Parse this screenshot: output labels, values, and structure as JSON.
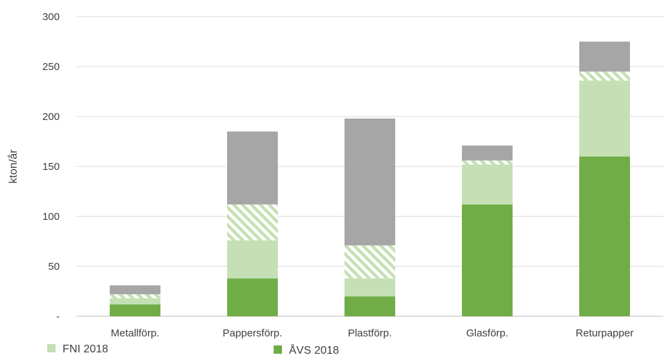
{
  "chart_data": {
    "type": "bar",
    "stacked": true,
    "ylabel": "kton/år",
    "ylim": [
      0,
      300
    ],
    "yticks": [
      0,
      50,
      100,
      150,
      200,
      250,
      300
    ],
    "ytick_labels": [
      "-",
      "50",
      "100",
      "150",
      "200",
      "250",
      "300"
    ],
    "categories": [
      "Metallförp.",
      "Pappersförp.",
      "Plastförp.",
      "Glasförp.",
      "Returpapper"
    ],
    "series": [
      {
        "name": "ÅVS 2018",
        "color": "#70ad47",
        "pattern": "solid",
        "values": [
          12,
          38,
          20,
          112,
          160
        ]
      },
      {
        "name": "FNI 2018",
        "color": "#c5e0b4",
        "pattern": "solid",
        "values": [
          6,
          38,
          18,
          40,
          76
        ]
      },
      {
        "name": "",
        "color": "#a9d18e",
        "pattern": "hatch",
        "values": [
          4,
          36,
          33,
          4,
          9
        ]
      },
      {
        "name": "",
        "color": "#a6a6a6",
        "pattern": "solid",
        "values": [
          9,
          73,
          127,
          15,
          30
        ]
      }
    ],
    "grid": true,
    "legend_position": "bottom-left"
  }
}
